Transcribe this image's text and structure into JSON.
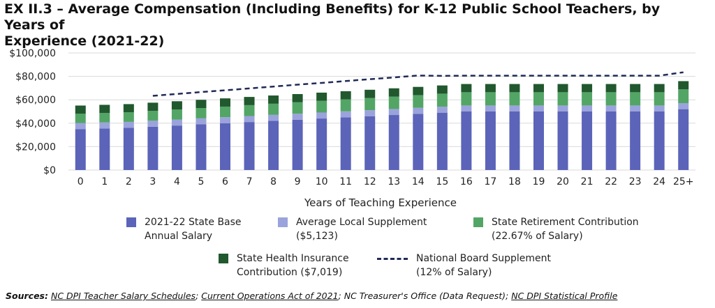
{
  "title_line1": "EX II.3 – Average Compensation (Including Benefits) for K-12 Public School Teachers, by Years of",
  "title_line2": "Experience (2021-22)",
  "colors": {
    "base": "#5b64b8",
    "local": "#9ba3dc",
    "retirement": "#53a566",
    "health": "#21582e",
    "nbpts": "#1f2a56",
    "grid": "#d9d9d9"
  },
  "legend": {
    "base": {
      "line1": "2021-22 State Base",
      "line2": "Annual Salary"
    },
    "local": {
      "line1": "Average Local Supplement",
      "line2": "($5,123)"
    },
    "retirement": {
      "line1": "State Retirement Contribution",
      "line2": "(22.67% of Salary)"
    },
    "health": {
      "line1": "State Health Insurance",
      "line2": "Contribution ($7,019)"
    },
    "nbpts": {
      "line1": "National Board Supplement",
      "line2": "(12% of Salary)"
    }
  },
  "sources": {
    "label": "Sources:",
    "s1": "NC DPI Teacher Salary Schedules",
    "sep1": ";",
    "s2": "Current Operations Act of 2021",
    "sep2": "; NC Treasurer's Office (Data Request);",
    "s3": "NC DPI Statistical Profile"
  },
  "chart_data": {
    "type": "bar",
    "stacked": true,
    "xlabel": "Years of Teaching Experience",
    "ylabel": "",
    "ylim": [
      0,
      100000
    ],
    "yticks": [
      0,
      20000,
      40000,
      60000,
      80000,
      100000
    ],
    "ytick_labels": [
      "$0",
      "$20,000",
      "$40,000",
      "$60,000",
      "$80,000",
      "$100,000"
    ],
    "grid": true,
    "categories": [
      "0",
      "1",
      "2",
      "3",
      "4",
      "5",
      "6",
      "7",
      "8",
      "9",
      "10",
      "11",
      "12",
      "13",
      "14",
      "15",
      "16",
      "17",
      "18",
      "19",
      "20",
      "21",
      "22",
      "23",
      "24",
      "25+"
    ],
    "series": [
      {
        "name": "2021-22 State Base Annual Salary",
        "values": [
          35000,
          35500,
          36000,
          37000,
          38000,
          39000,
          40000,
          41000,
          42000,
          43000,
          44000,
          45000,
          46000,
          47000,
          48000,
          49000,
          50000,
          50000,
          50000,
          50000,
          50000,
          50000,
          50000,
          50000,
          50000,
          52000
        ]
      },
      {
        "name": "Average Local Supplement ($5,123)",
        "values": [
          5123,
          5123,
          5123,
          5123,
          5123,
          5123,
          5123,
          5123,
          5123,
          5123,
          5123,
          5123,
          5123,
          5123,
          5123,
          5123,
          5123,
          5123,
          5123,
          5123,
          5123,
          5123,
          5123,
          5123,
          5123,
          5123
        ]
      },
      {
        "name": "State Retirement Contribution (22.67% of Salary)",
        "values": [
          7935,
          8048,
          8161,
          8388,
          8615,
          8841,
          9068,
          9295,
          9521,
          9748,
          9975,
          10202,
          10428,
          10655,
          10882,
          11108,
          11335,
          11335,
          11335,
          11335,
          11335,
          11335,
          11335,
          11335,
          11335,
          11788
        ]
      },
      {
        "name": "State Health Insurance Contribution ($7,019)",
        "values": [
          7019,
          7019,
          7019,
          7019,
          7019,
          7019,
          7019,
          7019,
          7019,
          7019,
          7019,
          7019,
          7019,
          7019,
          7019,
          7019,
          7019,
          7019,
          7019,
          7019,
          7019,
          7019,
          7019,
          7019,
          7019,
          7019
        ]
      },
      {
        "name": "National Board Supplement (12% of Salary)",
        "type": "line",
        "start_index": 3,
        "values": [
          null,
          null,
          null,
          63400,
          65000,
          66600,
          68100,
          69700,
          71300,
          72900,
          74400,
          76000,
          77600,
          79100,
          80700,
          80400,
          80600,
          80600,
          80600,
          80600,
          80600,
          80600,
          80600,
          80600,
          80600,
          83500
        ]
      }
    ]
  }
}
